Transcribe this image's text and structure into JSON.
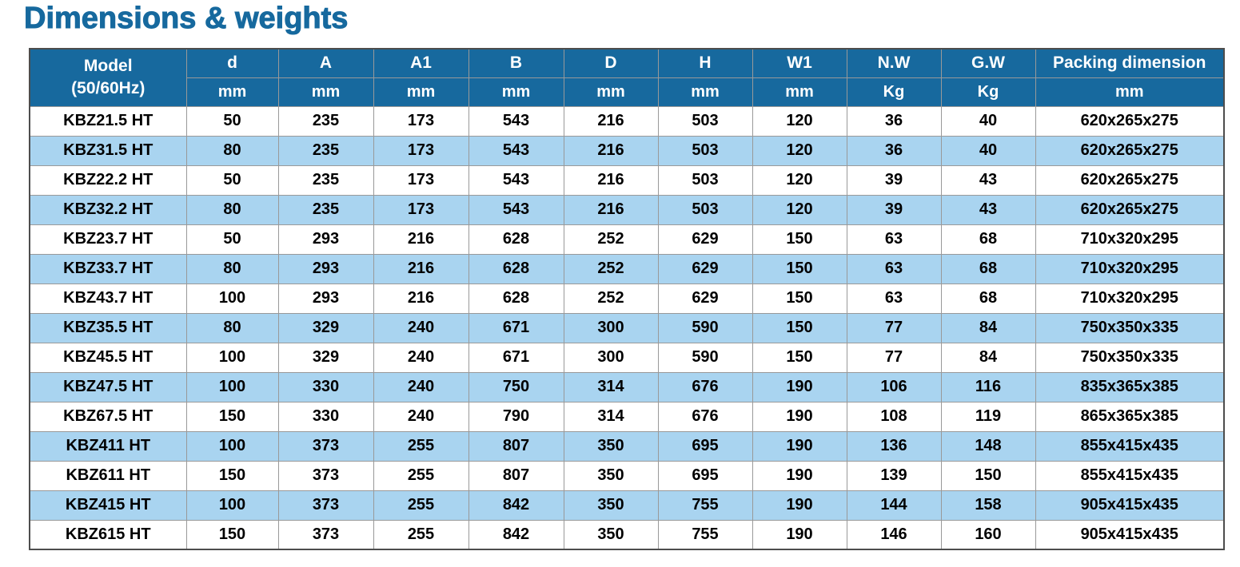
{
  "page": {
    "title": "Dimensions & weights"
  },
  "colors": {
    "title_text": "#16699E",
    "header_bg": "#17699E",
    "header_text": "#FFFFFF",
    "alt_row_bg": "#A9D4F0",
    "grid_line": "#999999",
    "body_text": "#000000"
  },
  "table": {
    "model_header": {
      "line1": "Model",
      "line2": "(50/60Hz)"
    },
    "columns": [
      {
        "label": "d",
        "unit": "mm"
      },
      {
        "label": "A",
        "unit": "mm"
      },
      {
        "label": "A1",
        "unit": "mm"
      },
      {
        "label": "B",
        "unit": "mm"
      },
      {
        "label": "D",
        "unit": "mm"
      },
      {
        "label": "H",
        "unit": "mm"
      },
      {
        "label": "W1",
        "unit": "mm"
      },
      {
        "label": "N.W",
        "unit": "Kg"
      },
      {
        "label": "G.W",
        "unit": "Kg"
      },
      {
        "label": "Packing dimension",
        "unit": "mm"
      }
    ],
    "rows": [
      {
        "model": "KBZ21.5 HT",
        "values": [
          "50",
          "235",
          "173",
          "543",
          "216",
          "503",
          "120",
          "36",
          "40",
          "620x265x275"
        ]
      },
      {
        "model": "KBZ31.5 HT",
        "values": [
          "80",
          "235",
          "173",
          "543",
          "216",
          "503",
          "120",
          "36",
          "40",
          "620x265x275"
        ]
      },
      {
        "model": "KBZ22.2 HT",
        "values": [
          "50",
          "235",
          "173",
          "543",
          "216",
          "503",
          "120",
          "39",
          "43",
          "620x265x275"
        ]
      },
      {
        "model": "KBZ32.2 HT",
        "values": [
          "80",
          "235",
          "173",
          "543",
          "216",
          "503",
          "120",
          "39",
          "43",
          "620x265x275"
        ]
      },
      {
        "model": "KBZ23.7 HT",
        "values": [
          "50",
          "293",
          "216",
          "628",
          "252",
          "629",
          "150",
          "63",
          "68",
          "710x320x295"
        ]
      },
      {
        "model": "KBZ33.7 HT",
        "values": [
          "80",
          "293",
          "216",
          "628",
          "252",
          "629",
          "150",
          "63",
          "68",
          "710x320x295"
        ]
      },
      {
        "model": "KBZ43.7 HT",
        "values": [
          "100",
          "293",
          "216",
          "628",
          "252",
          "629",
          "150",
          "63",
          "68",
          "710x320x295"
        ]
      },
      {
        "model": "KBZ35.5 HT",
        "values": [
          "80",
          "329",
          "240",
          "671",
          "300",
          "590",
          "150",
          "77",
          "84",
          "750x350x335"
        ]
      },
      {
        "model": "KBZ45.5 HT",
        "values": [
          "100",
          "329",
          "240",
          "671",
          "300",
          "590",
          "150",
          "77",
          "84",
          "750x350x335"
        ]
      },
      {
        "model": "KBZ47.5 HT",
        "values": [
          "100",
          "330",
          "240",
          "750",
          "314",
          "676",
          "190",
          "106",
          "116",
          "835x365x385"
        ]
      },
      {
        "model": "KBZ67.5 HT",
        "values": [
          "150",
          "330",
          "240",
          "790",
          "314",
          "676",
          "190",
          "108",
          "119",
          "865x365x385"
        ]
      },
      {
        "model": "KBZ411 HT",
        "values": [
          "100",
          "373",
          "255",
          "807",
          "350",
          "695",
          "190",
          "136",
          "148",
          "855x415x435"
        ]
      },
      {
        "model": "KBZ611 HT",
        "values": [
          "150",
          "373",
          "255",
          "807",
          "350",
          "695",
          "190",
          "139",
          "150",
          "855x415x435"
        ]
      },
      {
        "model": "KBZ415 HT",
        "values": [
          "100",
          "373",
          "255",
          "842",
          "350",
          "755",
          "190",
          "144",
          "158",
          "905x415x435"
        ]
      },
      {
        "model": "KBZ615 HT",
        "values": [
          "150",
          "373",
          "255",
          "842",
          "350",
          "755",
          "190",
          "146",
          "160",
          "905x415x435"
        ]
      }
    ]
  }
}
